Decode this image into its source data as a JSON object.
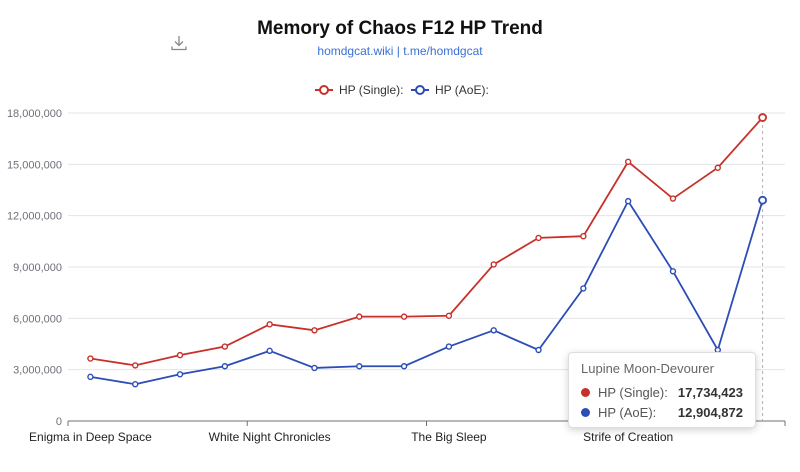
{
  "header": {
    "title": "Memory of Chaos F12 HP Trend",
    "subtitle": "homdgcat.wiki | t.me/homdgcat",
    "download_icon": "download-icon"
  },
  "colors": {
    "single": "#c8312a",
    "aoe": "#2c4db5",
    "grid": "#e4e5ea",
    "axis": "#6e7079"
  },
  "chart_data": {
    "type": "line",
    "title": "Memory of Chaos F12 HP Trend",
    "xlabel": "",
    "ylabel": "",
    "ylim": [
      0,
      18000000
    ],
    "yticks": [
      "0",
      "3,000,000",
      "6,000,000",
      "9,000,000",
      "12,000,000",
      "15,000,000",
      "18,000,000"
    ],
    "x_tick_labels": [
      "Enigma in Deep Space",
      "White Night Chronicles",
      "The Big Sleep",
      "Strife of Creation"
    ],
    "x_tick_label_positions": [
      0,
      4,
      8,
      12
    ],
    "legend_position": "top-center",
    "grid": true,
    "series": [
      {
        "name": "HP (Single):",
        "values": [
          3650000,
          3250000,
          3850000,
          4350000,
          5650000,
          5300000,
          6100000,
          6100000,
          6150000,
          9150000,
          10700000,
          10800000,
          15150000,
          13000000,
          14800000,
          17734423
        ]
      },
      {
        "name": "HP (AoE):",
        "values": [
          2580000,
          2150000,
          2730000,
          3200000,
          4100000,
          3100000,
          3200000,
          3200000,
          4350000,
          5300000,
          4150000,
          7750000,
          12850000,
          8750000,
          4150000,
          12904872
        ]
      }
    ]
  },
  "tooltip": {
    "title": "Lupine Moon-Devourer",
    "rows": [
      {
        "name": "HP (Single):",
        "value": "17,734,423"
      },
      {
        "name": "HP (AoE):",
        "value": "12,904,872"
      }
    ]
  }
}
